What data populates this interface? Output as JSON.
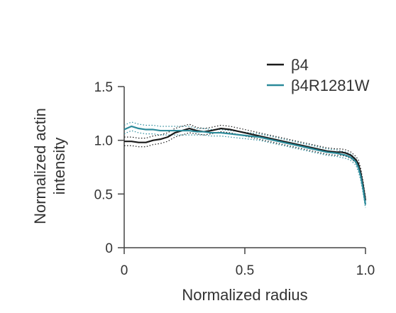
{
  "chart_data": {
    "type": "line",
    "xlabel": "Normalized radius",
    "ylabel_lines": [
      "Normalized actin",
      "intensity"
    ],
    "xlim": [
      0,
      1.0
    ],
    "ylim": [
      0,
      1.5
    ],
    "x_ticks": [
      0,
      0.5,
      1.0
    ],
    "x_tick_labels": [
      "0",
      "0.5",
      "1.0"
    ],
    "y_ticks": [
      0,
      0.5,
      1.0,
      1.5
    ],
    "y_tick_labels": [
      "0",
      "0.5",
      "1.0",
      "1.5"
    ],
    "grid": false,
    "legend_position": "top-right",
    "error_band_style": "dotted",
    "series": [
      {
        "name": "β4",
        "color": "#1a1a1a",
        "x": [
          0,
          0.03,
          0.06,
          0.09,
          0.12,
          0.15,
          0.18,
          0.21,
          0.24,
          0.27,
          0.3,
          0.33,
          0.36,
          0.4,
          0.44,
          0.48,
          0.52,
          0.56,
          0.6,
          0.64,
          0.68,
          0.72,
          0.76,
          0.8,
          0.84,
          0.88,
          0.9,
          0.92,
          0.94,
          0.96,
          0.97,
          0.98,
          0.99,
          1.0
        ],
        "values": [
          0.99,
          0.99,
          0.98,
          0.98,
          1.0,
          1.01,
          1.03,
          1.07,
          1.09,
          1.11,
          1.09,
          1.08,
          1.09,
          1.11,
          1.1,
          1.08,
          1.06,
          1.04,
          1.02,
          1.0,
          0.98,
          0.96,
          0.94,
          0.92,
          0.9,
          0.89,
          0.89,
          0.88,
          0.86,
          0.82,
          0.78,
          0.7,
          0.58,
          0.44
        ],
        "lower": [
          0.95,
          0.95,
          0.94,
          0.94,
          0.96,
          0.97,
          0.99,
          1.03,
          1.05,
          1.07,
          1.06,
          1.05,
          1.06,
          1.08,
          1.07,
          1.05,
          1.03,
          1.01,
          0.99,
          0.97,
          0.95,
          0.93,
          0.91,
          0.89,
          0.87,
          0.86,
          0.86,
          0.85,
          0.83,
          0.79,
          0.74,
          0.66,
          0.54,
          0.41
        ],
        "upper": [
          1.03,
          1.03,
          1.02,
          1.02,
          1.04,
          1.05,
          1.07,
          1.11,
          1.13,
          1.15,
          1.12,
          1.11,
          1.12,
          1.14,
          1.13,
          1.11,
          1.09,
          1.07,
          1.05,
          1.03,
          1.01,
          0.99,
          0.97,
          0.95,
          0.93,
          0.92,
          0.92,
          0.91,
          0.89,
          0.85,
          0.82,
          0.74,
          0.62,
          0.47
        ]
      },
      {
        "name": "β4R1281W",
        "color": "#2b8a9a",
        "x": [
          0,
          0.03,
          0.06,
          0.09,
          0.12,
          0.15,
          0.18,
          0.21,
          0.24,
          0.27,
          0.3,
          0.33,
          0.36,
          0.4,
          0.44,
          0.48,
          0.52,
          0.56,
          0.6,
          0.64,
          0.68,
          0.72,
          0.76,
          0.8,
          0.84,
          0.88,
          0.9,
          0.92,
          0.94,
          0.96,
          0.97,
          0.98,
          0.99,
          1.0
        ],
        "values": [
          1.1,
          1.13,
          1.11,
          1.1,
          1.1,
          1.09,
          1.09,
          1.09,
          1.09,
          1.09,
          1.08,
          1.08,
          1.07,
          1.07,
          1.06,
          1.05,
          1.04,
          1.03,
          1.01,
          0.99,
          0.97,
          0.95,
          0.93,
          0.91,
          0.89,
          0.88,
          0.87,
          0.86,
          0.84,
          0.8,
          0.75,
          0.67,
          0.55,
          0.4
        ],
        "lower": [
          1.06,
          1.09,
          1.07,
          1.06,
          1.06,
          1.05,
          1.05,
          1.05,
          1.05,
          1.05,
          1.05,
          1.05,
          1.04,
          1.04,
          1.03,
          1.02,
          1.01,
          1.0,
          0.98,
          0.96,
          0.94,
          0.92,
          0.9,
          0.88,
          0.86,
          0.85,
          0.84,
          0.83,
          0.81,
          0.77,
          0.71,
          0.63,
          0.51,
          0.37
        ],
        "upper": [
          1.14,
          1.17,
          1.15,
          1.14,
          1.14,
          1.13,
          1.13,
          1.13,
          1.13,
          1.13,
          1.11,
          1.11,
          1.1,
          1.1,
          1.09,
          1.08,
          1.07,
          1.06,
          1.04,
          1.02,
          1.0,
          0.98,
          0.96,
          0.94,
          0.92,
          0.91,
          0.9,
          0.89,
          0.87,
          0.83,
          0.79,
          0.71,
          0.59,
          0.43
        ]
      }
    ]
  }
}
